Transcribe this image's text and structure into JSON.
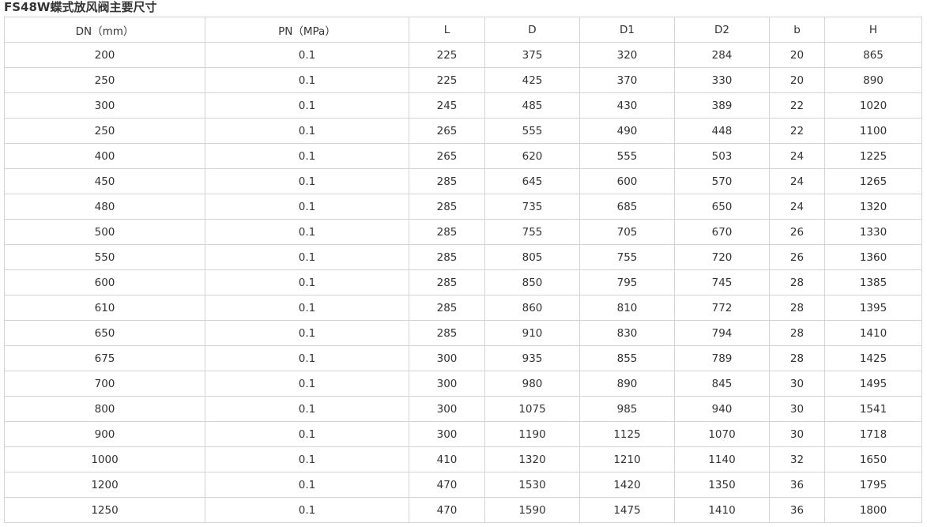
{
  "title": "FS48W蝶式放风阀主要尺寸",
  "table": {
    "headers": [
      "DN（mm）",
      "PN（MPa）",
      "L",
      "D",
      "D1",
      "D2",
      "b",
      "H"
    ],
    "rows": [
      [
        "200",
        "0.1",
        "225",
        "375",
        "320",
        "284",
        "20",
        "865"
      ],
      [
        "250",
        "0.1",
        "225",
        "425",
        "370",
        "330",
        "20",
        "890"
      ],
      [
        "300",
        "0.1",
        "245",
        "485",
        "430",
        "389",
        "22",
        "1020"
      ],
      [
        "250",
        "0.1",
        "265",
        "555",
        "490",
        "448",
        "22",
        "1100"
      ],
      [
        "400",
        "0.1",
        "265",
        "620",
        "555",
        "503",
        "24",
        "1225"
      ],
      [
        "450",
        "0.1",
        "285",
        "645",
        "600",
        "570",
        "24",
        "1265"
      ],
      [
        "480",
        "0.1",
        "285",
        "735",
        "685",
        "650",
        "24",
        "1320"
      ],
      [
        "500",
        "0.1",
        "285",
        "755",
        "705",
        "670",
        "26",
        "1330"
      ],
      [
        "550",
        "0.1",
        "285",
        "805",
        "755",
        "720",
        "26",
        "1360"
      ],
      [
        "600",
        "0.1",
        "285",
        "850",
        "795",
        "745",
        "28",
        "1385"
      ],
      [
        "610",
        "0.1",
        "285",
        "860",
        "810",
        "772",
        "28",
        "1395"
      ],
      [
        "650",
        "0.1",
        "285",
        "910",
        "830",
        "794",
        "28",
        "1410"
      ],
      [
        "675",
        "0.1",
        "300",
        "935",
        "855",
        "789",
        "28",
        "1425"
      ],
      [
        "700",
        "0.1",
        "300",
        "980",
        "890",
        "845",
        "30",
        "1495"
      ],
      [
        "800",
        "0.1",
        "300",
        "1075",
        "985",
        "940",
        "30",
        "1541"
      ],
      [
        "900",
        "0.1",
        "300",
        "1190",
        "1125",
        "1070",
        "30",
        "1718"
      ],
      [
        "1000",
        "0.1",
        "410",
        "1320",
        "1210",
        "1140",
        "32",
        "1650"
      ],
      [
        "1200",
        "0.1",
        "470",
        "1530",
        "1420",
        "1350",
        "36",
        "1795"
      ],
      [
        "1250",
        "0.1",
        "470",
        "1590",
        "1475",
        "1410",
        "36",
        "1800"
      ]
    ]
  }
}
